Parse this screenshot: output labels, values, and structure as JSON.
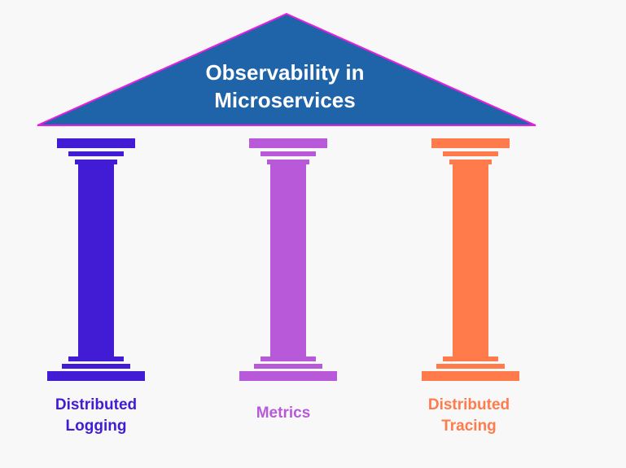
{
  "title": {
    "line1": "Observability in",
    "line2": "Microservices"
  },
  "colors": {
    "background": "#f8f8f8",
    "roof": "#1f63a8",
    "roof_outline": "#e81ee0",
    "title_text": "#ffffff"
  },
  "pillars": [
    {
      "label_line1": "Distributed",
      "label_line2": "Logging",
      "color": "#421cd4"
    },
    {
      "label_line1": "Metrics",
      "label_line2": "",
      "color": "#b759d9"
    },
    {
      "label_line1": "Distributed",
      "label_line2": "Tracing",
      "color": "#ff7b4b"
    }
  ]
}
